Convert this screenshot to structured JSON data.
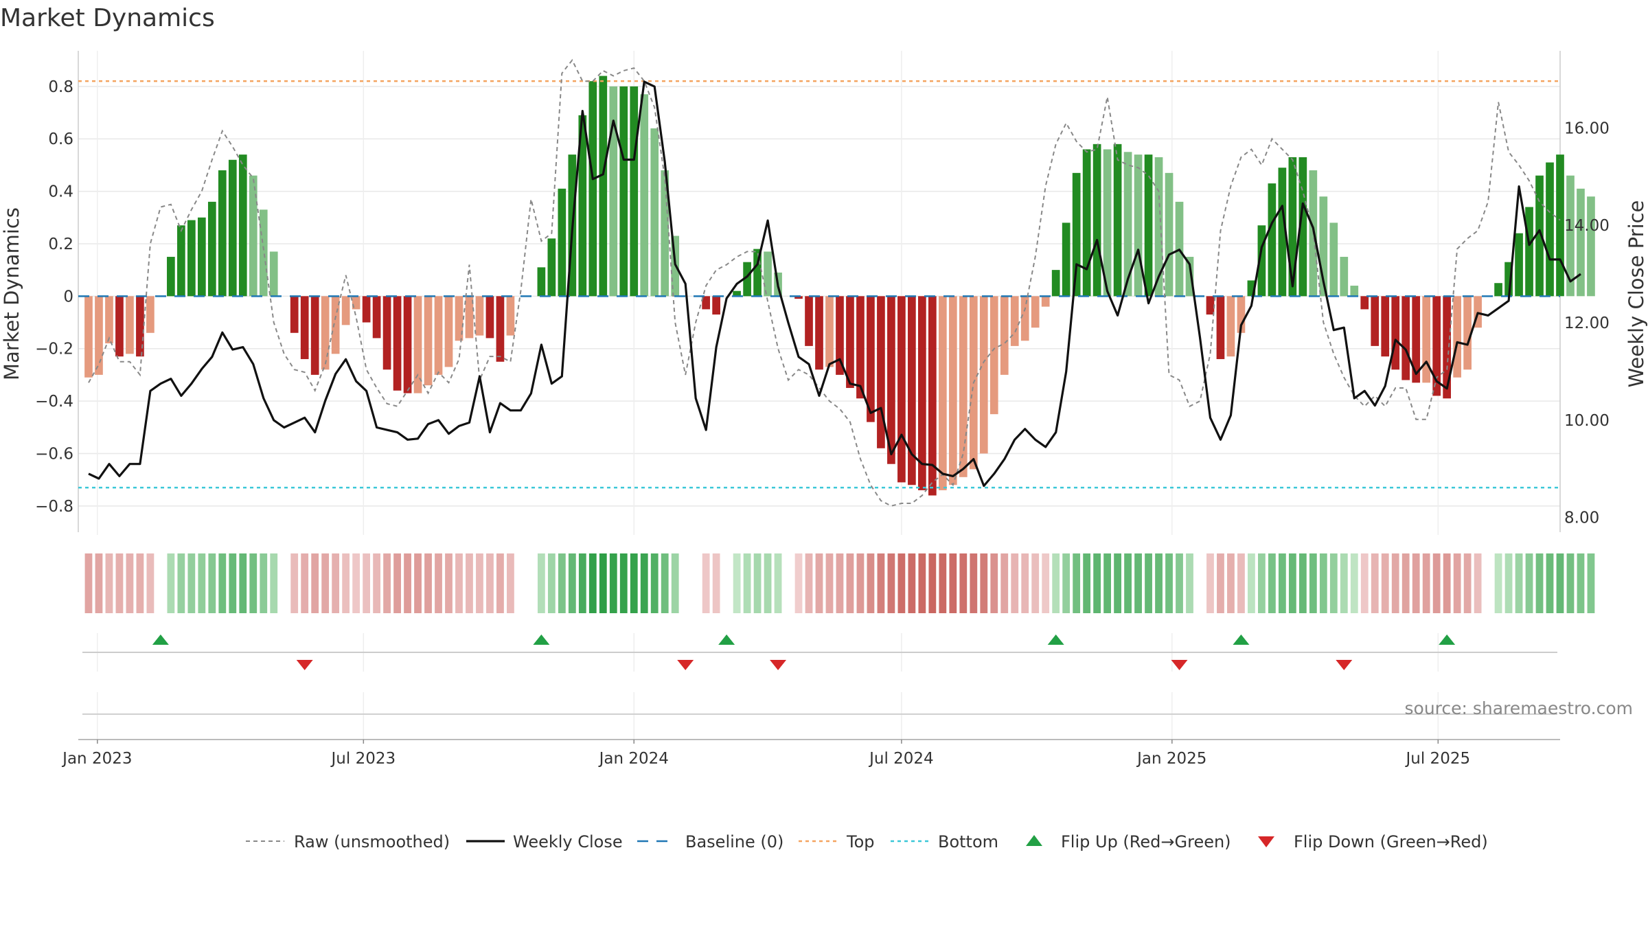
{
  "chart_data": {
    "type": "bar",
    "title": "Market Dynamics",
    "ylabel_left": "Market Dynamics",
    "ylabel_right": "Weekly Close Price",
    "ylim_left": [
      -0.9,
      0.92
    ],
    "ylim_right": [
      7.7,
      17.5
    ],
    "yticks_left": [
      "−0.8",
      "−0.6",
      "−0.4",
      "−0.2",
      "0",
      "0.2",
      "0.4",
      "0.6",
      "0.8"
    ],
    "yticks_right": [
      "8.00",
      "10.00",
      "12.00",
      "14.00",
      "16.00"
    ],
    "x_ticks": [
      "Jan 2023",
      "Jul 2023",
      "Jan 2024",
      "Jul 2024",
      "Jan 2025",
      "Jul 2025"
    ],
    "x_range": [
      "2022-12-19",
      "2025-09-22"
    ],
    "x_tick_dates": [
      "2023-01-01",
      "2023-07-01",
      "2024-01-01",
      "2024-07-01",
      "2025-01-01",
      "2025-07-01"
    ],
    "start_date": "2022-12-26",
    "week_step_days": 7,
    "top_level": 0.82,
    "bottom_level": -0.73,
    "baseline": 0,
    "grid": true,
    "legend_position": "bottom-center",
    "colors": {
      "strong_green": "#228b22",
      "light_green": "#82c086",
      "strong_red": "#b22222",
      "light_red": "#e59a7e",
      "top_line": "#f4a460",
      "bottom_line": "#3cc8d8",
      "baseline": "#1f77b4",
      "close_line": "#111111",
      "raw_line": "#888888",
      "flip_up": "#22a045",
      "flip_down": "#d62728"
    },
    "series": [
      {
        "name": "Market Dynamics",
        "values": [
          -0.31,
          -0.3,
          -0.18,
          -0.23,
          -0.22,
          -0.23,
          -0.14,
          0,
          0.15,
          0.27,
          0.29,
          0.3,
          0.36,
          0.48,
          0.52,
          0.54,
          0.46,
          0.33,
          0.17,
          0,
          -0.14,
          -0.24,
          -0.3,
          -0.28,
          -0.22,
          -0.11,
          -0.05,
          -0.1,
          -0.16,
          -0.28,
          -0.36,
          -0.37,
          -0.37,
          -0.34,
          -0.3,
          -0.27,
          -0.17,
          -0.16,
          -0.15,
          -0.16,
          -0.25,
          -0.15,
          0,
          0,
          0.11,
          0.22,
          0.41,
          0.54,
          0.69,
          0.82,
          0.84,
          0.8,
          0.8,
          0.8,
          0.77,
          0.64,
          0.48,
          0.23,
          0,
          0,
          -0.05,
          -0.07,
          0,
          0.02,
          0.13,
          0.18,
          0.17,
          0.09,
          0,
          -0.01,
          -0.19,
          -0.28,
          -0.27,
          -0.3,
          -0.35,
          -0.39,
          -0.48,
          -0.58,
          -0.64,
          -0.71,
          -0.72,
          -0.74,
          -0.76,
          -0.74,
          -0.72,
          -0.69,
          -0.66,
          -0.6,
          -0.45,
          -0.3,
          -0.19,
          -0.17,
          -0.12,
          -0.04,
          0.1,
          0.28,
          0.47,
          0.56,
          0.58,
          0.56,
          0.58,
          0.55,
          0.54,
          0.54,
          0.53,
          0.47,
          0.36,
          0.15,
          0,
          -0.07,
          -0.24,
          -0.23,
          -0.14,
          0.06,
          0.27,
          0.43,
          0.49,
          0.53,
          0.53,
          0.48,
          0.38,
          0.28,
          0.15,
          0.04,
          -0.05,
          -0.19,
          -0.23,
          -0.28,
          -0.32,
          -0.33,
          -0.33,
          -0.38,
          -0.39,
          -0.31,
          -0.28,
          -0.12,
          0,
          0.05,
          0.13,
          0.24,
          0.34,
          0.46,
          0.51,
          0.54,
          0.46,
          0.41,
          0.38
        ]
      },
      {
        "name": "Raw (unsmoothed)",
        "values": [
          -0.33,
          -0.26,
          -0.16,
          -0.25,
          -0.25,
          -0.3,
          0.2,
          0.34,
          0.35,
          0.25,
          0.33,
          0.4,
          0.52,
          0.63,
          0.57,
          0.5,
          0.45,
          0.18,
          -0.1,
          -0.22,
          -0.28,
          -0.29,
          -0.36,
          -0.26,
          -0.08,
          0.08,
          -0.08,
          -0.28,
          -0.35,
          -0.41,
          -0.42,
          -0.36,
          -0.3,
          -0.37,
          -0.29,
          -0.33,
          -0.24,
          0.12,
          -0.32,
          -0.23,
          -0.23,
          -0.25,
          0.02,
          0.37,
          0.21,
          0.24,
          0.85,
          0.9,
          0.82,
          0.82,
          0.86,
          0.84,
          0.86,
          0.87,
          0.82,
          0.72,
          0.45,
          -0.1,
          -0.3,
          -0.1,
          0.04,
          0.1,
          0.12,
          0.15,
          0.17,
          0.17,
          -0.02,
          -0.2,
          -0.32,
          -0.28,
          -0.3,
          -0.35,
          -0.4,
          -0.43,
          -0.48,
          -0.62,
          -0.72,
          -0.78,
          -0.8,
          -0.79,
          -0.79,
          -0.76,
          -0.71,
          -0.68,
          -0.72,
          -0.6,
          -0.33,
          -0.25,
          -0.2,
          -0.18,
          -0.14,
          -0.05,
          0.15,
          0.42,
          0.58,
          0.66,
          0.59,
          0.55,
          0.56,
          0.76,
          0.52,
          0.5,
          0.49,
          0.46,
          0.4,
          -0.3,
          -0.32,
          -0.42,
          -0.4,
          -0.22,
          0.25,
          0.42,
          0.53,
          0.56,
          0.5,
          0.6,
          0.56,
          0.52,
          0.4,
          0.25,
          -0.1,
          -0.22,
          -0.31,
          -0.38,
          -0.42,
          -0.38,
          -0.42,
          -0.35,
          -0.35,
          -0.47,
          -0.47,
          -0.31,
          -0.28,
          0.18,
          0.22,
          0.25,
          0.36,
          0.74,
          0.55,
          0.5,
          0.44,
          0.36,
          0.32,
          0.29
        ]
      },
      {
        "name": "Weekly Close",
        "values": [
          8.9,
          8.8,
          9.1,
          8.85,
          9.1,
          9.1,
          10.6,
          10.75,
          10.85,
          10.5,
          10.75,
          11.05,
          11.3,
          11.8,
          11.45,
          11.5,
          11.15,
          10.45,
          10.0,
          9.85,
          9.95,
          10.05,
          9.75,
          10.4,
          10.95,
          11.25,
          10.8,
          10.6,
          9.85,
          9.8,
          9.75,
          9.6,
          9.62,
          9.92,
          10.0,
          9.72,
          9.88,
          9.95,
          10.9,
          9.75,
          10.35,
          10.2,
          10.2,
          10.55,
          11.55,
          10.75,
          10.9,
          13.9,
          16.35,
          14.95,
          15.05,
          16.15,
          15.35,
          15.35,
          16.95,
          16.85,
          15.3,
          13.2,
          12.8,
          10.45,
          9.8,
          11.5,
          12.5,
          12.8,
          12.95,
          13.2,
          14.1,
          12.75,
          12.0,
          11.3,
          11.15,
          10.5,
          11.15,
          11.25,
          10.75,
          10.7,
          10.15,
          10.25,
          9.3,
          9.7,
          9.3,
          9.1,
          9.08,
          8.9,
          8.85,
          9.0,
          9.2,
          8.65,
          8.9,
          9.2,
          9.6,
          9.82,
          9.6,
          9.45,
          9.75,
          11.0,
          13.2,
          13.1,
          13.7,
          12.65,
          12.15,
          12.9,
          13.5,
          12.4,
          12.95,
          13.4,
          13.5,
          13.2,
          11.7,
          10.05,
          9.6,
          10.1,
          11.95,
          12.35,
          13.55,
          14.05,
          14.4,
          12.75,
          14.45,
          13.95,
          12.85,
          11.85,
          11.9,
          10.45,
          10.6,
          10.3,
          10.7,
          11.65,
          11.45,
          10.95,
          11.2,
          10.8,
          10.65,
          11.6,
          11.55,
          12.2,
          12.15,
          12.3,
          12.45,
          14.8,
          13.6,
          13.9,
          13.3,
          13.3,
          12.85,
          13.0
        ]
      }
    ],
    "heatmap_strip_values": [
      -0.31,
      -0.3,
      -0.18,
      -0.23,
      -0.22,
      -0.23,
      -0.14,
      0,
      0.15,
      0.27,
      0.29,
      0.3,
      0.36,
      0.48,
      0.52,
      0.54,
      0.46,
      0.33,
      0.17,
      0,
      -0.14,
      -0.24,
      -0.3,
      -0.28,
      -0.22,
      -0.11,
      -0.05,
      -0.1,
      -0.16,
      -0.28,
      -0.36,
      -0.37,
      -0.37,
      -0.34,
      -0.3,
      -0.27,
      -0.17,
      -0.16,
      -0.15,
      -0.16,
      -0.25,
      -0.15,
      0,
      0,
      0.11,
      0.22,
      0.41,
      0.54,
      0.69,
      0.82,
      0.84,
      0.8,
      0.8,
      0.8,
      0.77,
      0.64,
      0.48,
      0.23,
      0,
      0,
      -0.05,
      -0.07,
      0,
      0.02,
      0.13,
      0.18,
      0.17,
      0.09,
      0,
      -0.01,
      -0.19,
      -0.28,
      -0.27,
      -0.3,
      -0.35,
      -0.39,
      -0.48,
      -0.58,
      -0.64,
      -0.71,
      -0.72,
      -0.74,
      -0.76,
      -0.74,
      -0.72,
      -0.69,
      -0.66,
      -0.6,
      -0.45,
      -0.3,
      -0.19,
      -0.17,
      -0.12,
      -0.04,
      0.1,
      0.28,
      0.47,
      0.56,
      0.58,
      0.56,
      0.58,
      0.55,
      0.54,
      0.54,
      0.53,
      0.47,
      0.36,
      0.15,
      0,
      -0.07,
      -0.24,
      -0.23,
      -0.14,
      0.06,
      0.27,
      0.43,
      0.49,
      0.53,
      0.53,
      0.48,
      0.38,
      0.28,
      0.15,
      0.04,
      -0.05,
      -0.19,
      -0.23,
      -0.28,
      -0.32,
      -0.33,
      -0.33,
      -0.38,
      -0.39,
      -0.31,
      -0.28,
      -0.12,
      0,
      0.05,
      0.13,
      0.24,
      0.34,
      0.46,
      0.51,
      0.54,
      0.46,
      0.41,
      0.38
    ],
    "flip_up_dates": [
      "2023-02-13",
      "2023-10-30",
      "2024-03-04",
      "2024-10-14",
      "2025-02-17",
      "2025-07-07"
    ],
    "flip_down_dates": [
      "2023-05-22",
      "2024-02-05",
      "2024-04-08",
      "2025-01-06",
      "2025-04-28"
    ],
    "legend": [
      {
        "label": "Raw (unsmoothed)",
        "style": "raw"
      },
      {
        "label": "Weekly Close",
        "style": "close"
      },
      {
        "label": "Baseline (0)",
        "style": "baseline"
      },
      {
        "label": "Top",
        "style": "top"
      },
      {
        "label": "Bottom",
        "style": "bottom"
      },
      {
        "label": "Flip Up (Red→Green)",
        "style": "flip-up"
      },
      {
        "label": "Flip Down (Green→Red)",
        "style": "flip-down"
      }
    ],
    "source": "source: sharemaestro.com"
  }
}
